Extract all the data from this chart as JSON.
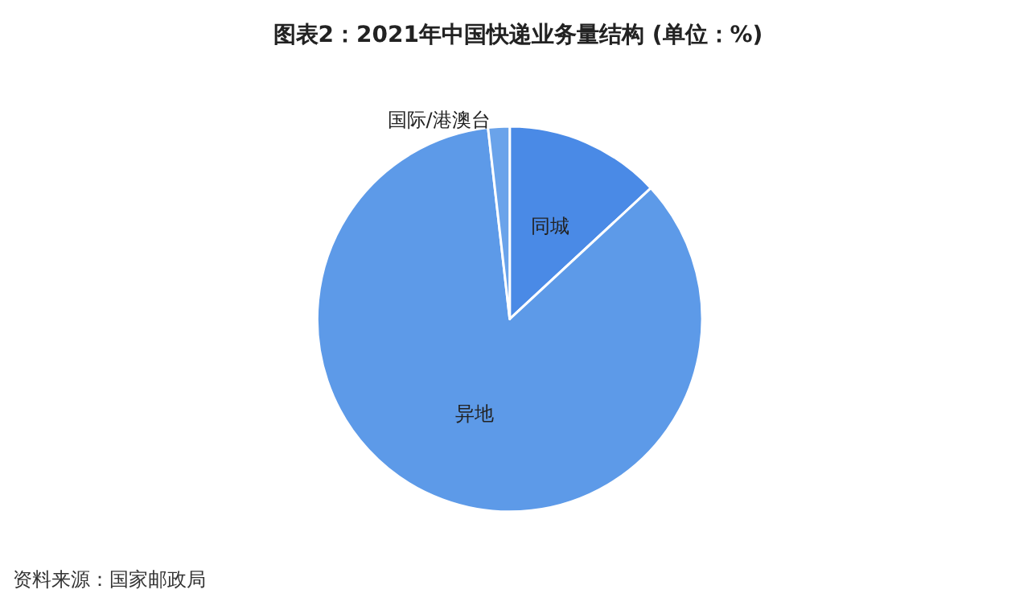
{
  "chart_data": {
    "type": "pie",
    "title": "图表2：2021年中国快递业务量结构 (单位：%)",
    "categories": [
      "同城",
      "异地",
      "国际/港澳台"
    ],
    "values": [
      13.1,
      85.1,
      1.8
    ],
    "colors": [
      "#4a8ae6",
      "#5d9ae8",
      "#6aa3ea"
    ],
    "legend": false,
    "annotations": [
      "资料来源：国家邮政局"
    ]
  }
}
